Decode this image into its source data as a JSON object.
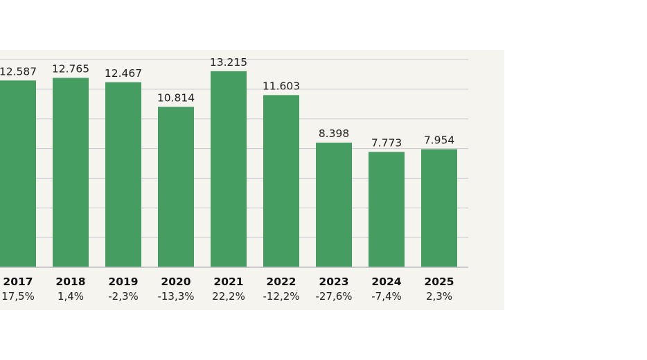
{
  "chart_data": {
    "type": "bar",
    "categories": [
      "2017",
      "2018",
      "2019",
      "2020",
      "2021",
      "2022",
      "2023",
      "2024",
      "2025"
    ],
    "values": [
      12587,
      12765,
      12467,
      10814,
      13215,
      11603,
      8398,
      7773,
      7954
    ],
    "value_labels": [
      "12.587",
      "12.765",
      "12.467",
      "10.814",
      "13.215",
      "11.603",
      "8.398",
      "7.773",
      "7.954"
    ],
    "change_labels": [
      "17,5%",
      "1,4%",
      "-2,3%",
      "-13,3%",
      "22,2%",
      "-12,2%",
      "-27,6%",
      "-7,4%",
      "2,3%"
    ],
    "title": "",
    "xlabel": "",
    "ylabel": "",
    "ylim": [
      0,
      14000
    ],
    "grid": true,
    "legend": "none"
  },
  "colors": {
    "bar": "#469d61",
    "background": "#f6f4ef",
    "grid": "#c5c8ce",
    "axis": "#b9bcc2"
  }
}
